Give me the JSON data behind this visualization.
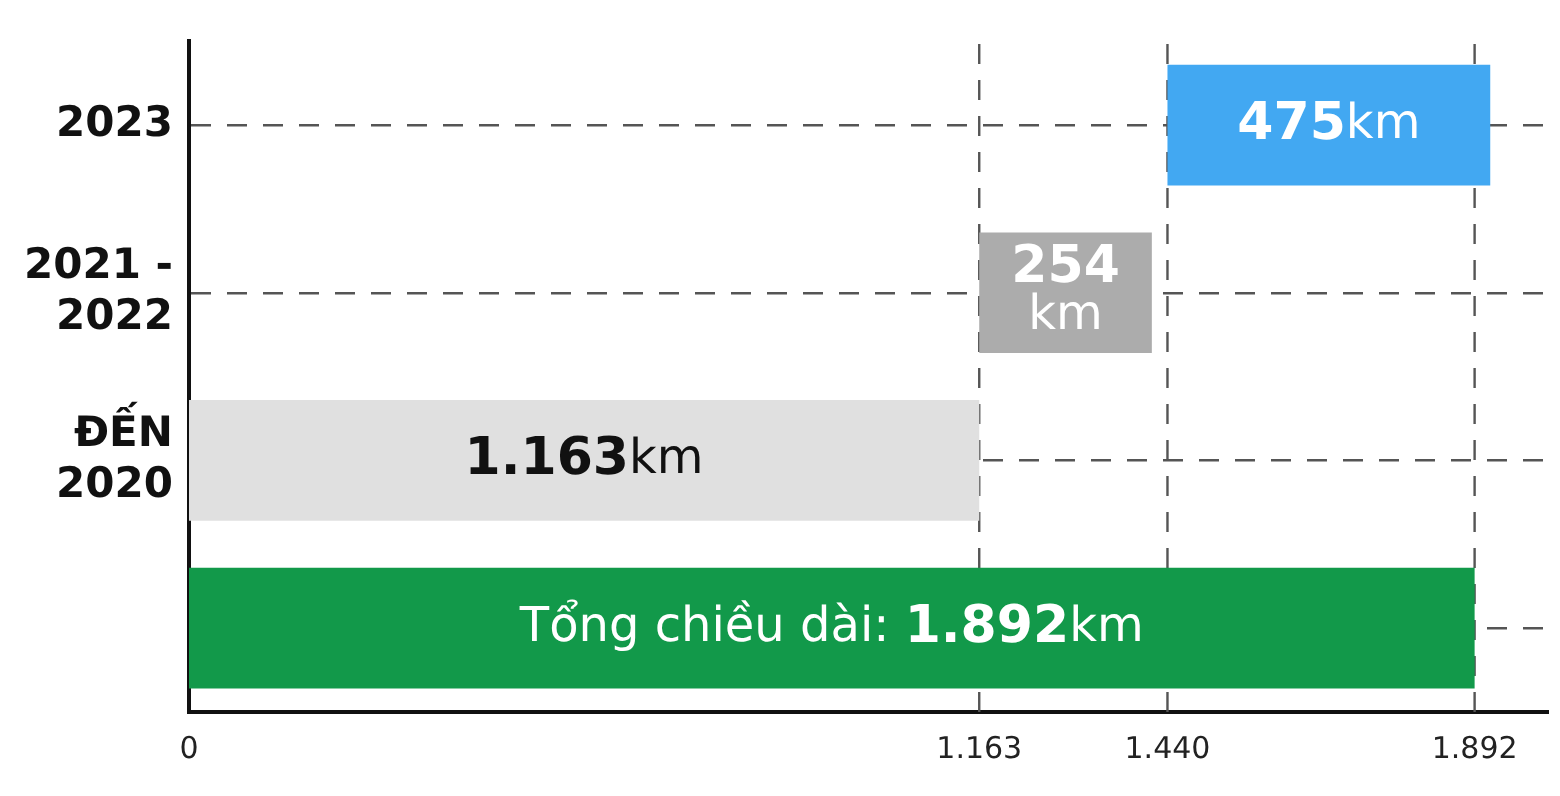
{
  "chart_data": {
    "type": "bar",
    "orientation": "horizontal",
    "categories": [
      "2023",
      "2021 - 2022",
      "ĐẾN 2020",
      null
    ],
    "values": [
      475,
      254,
      1163,
      1892
    ],
    "base": [
      1440,
      1163,
      0,
      0
    ],
    "colors": [
      "#42a8f2",
      "#acacac",
      "#e0e0e0",
      "#12994a"
    ],
    "value_labels": [
      "475km",
      "254 km",
      "1.163km",
      "Tổng chiều dài: 1.892km"
    ],
    "xlim": [
      0,
      2000
    ],
    "xticks": [
      0,
      {
        "value": 1163,
        "label": "1.163"
      },
      {
        "value": 1440,
        "label": "1.440"
      },
      {
        "value": 1892,
        "label": "1.892"
      }
    ],
    "ref_lines": [
      {
        "axis": "x",
        "value": 1163,
        "line_style": "dashed",
        "color": "#555555"
      },
      {
        "axis": "x",
        "value": 1440,
        "line_style": "dashed",
        "color": "#555555"
      },
      {
        "axis": "x",
        "value": 1892,
        "line_style": "dashed",
        "color": "#555555"
      }
    ],
    "grid": "y",
    "legend": false
  }
}
